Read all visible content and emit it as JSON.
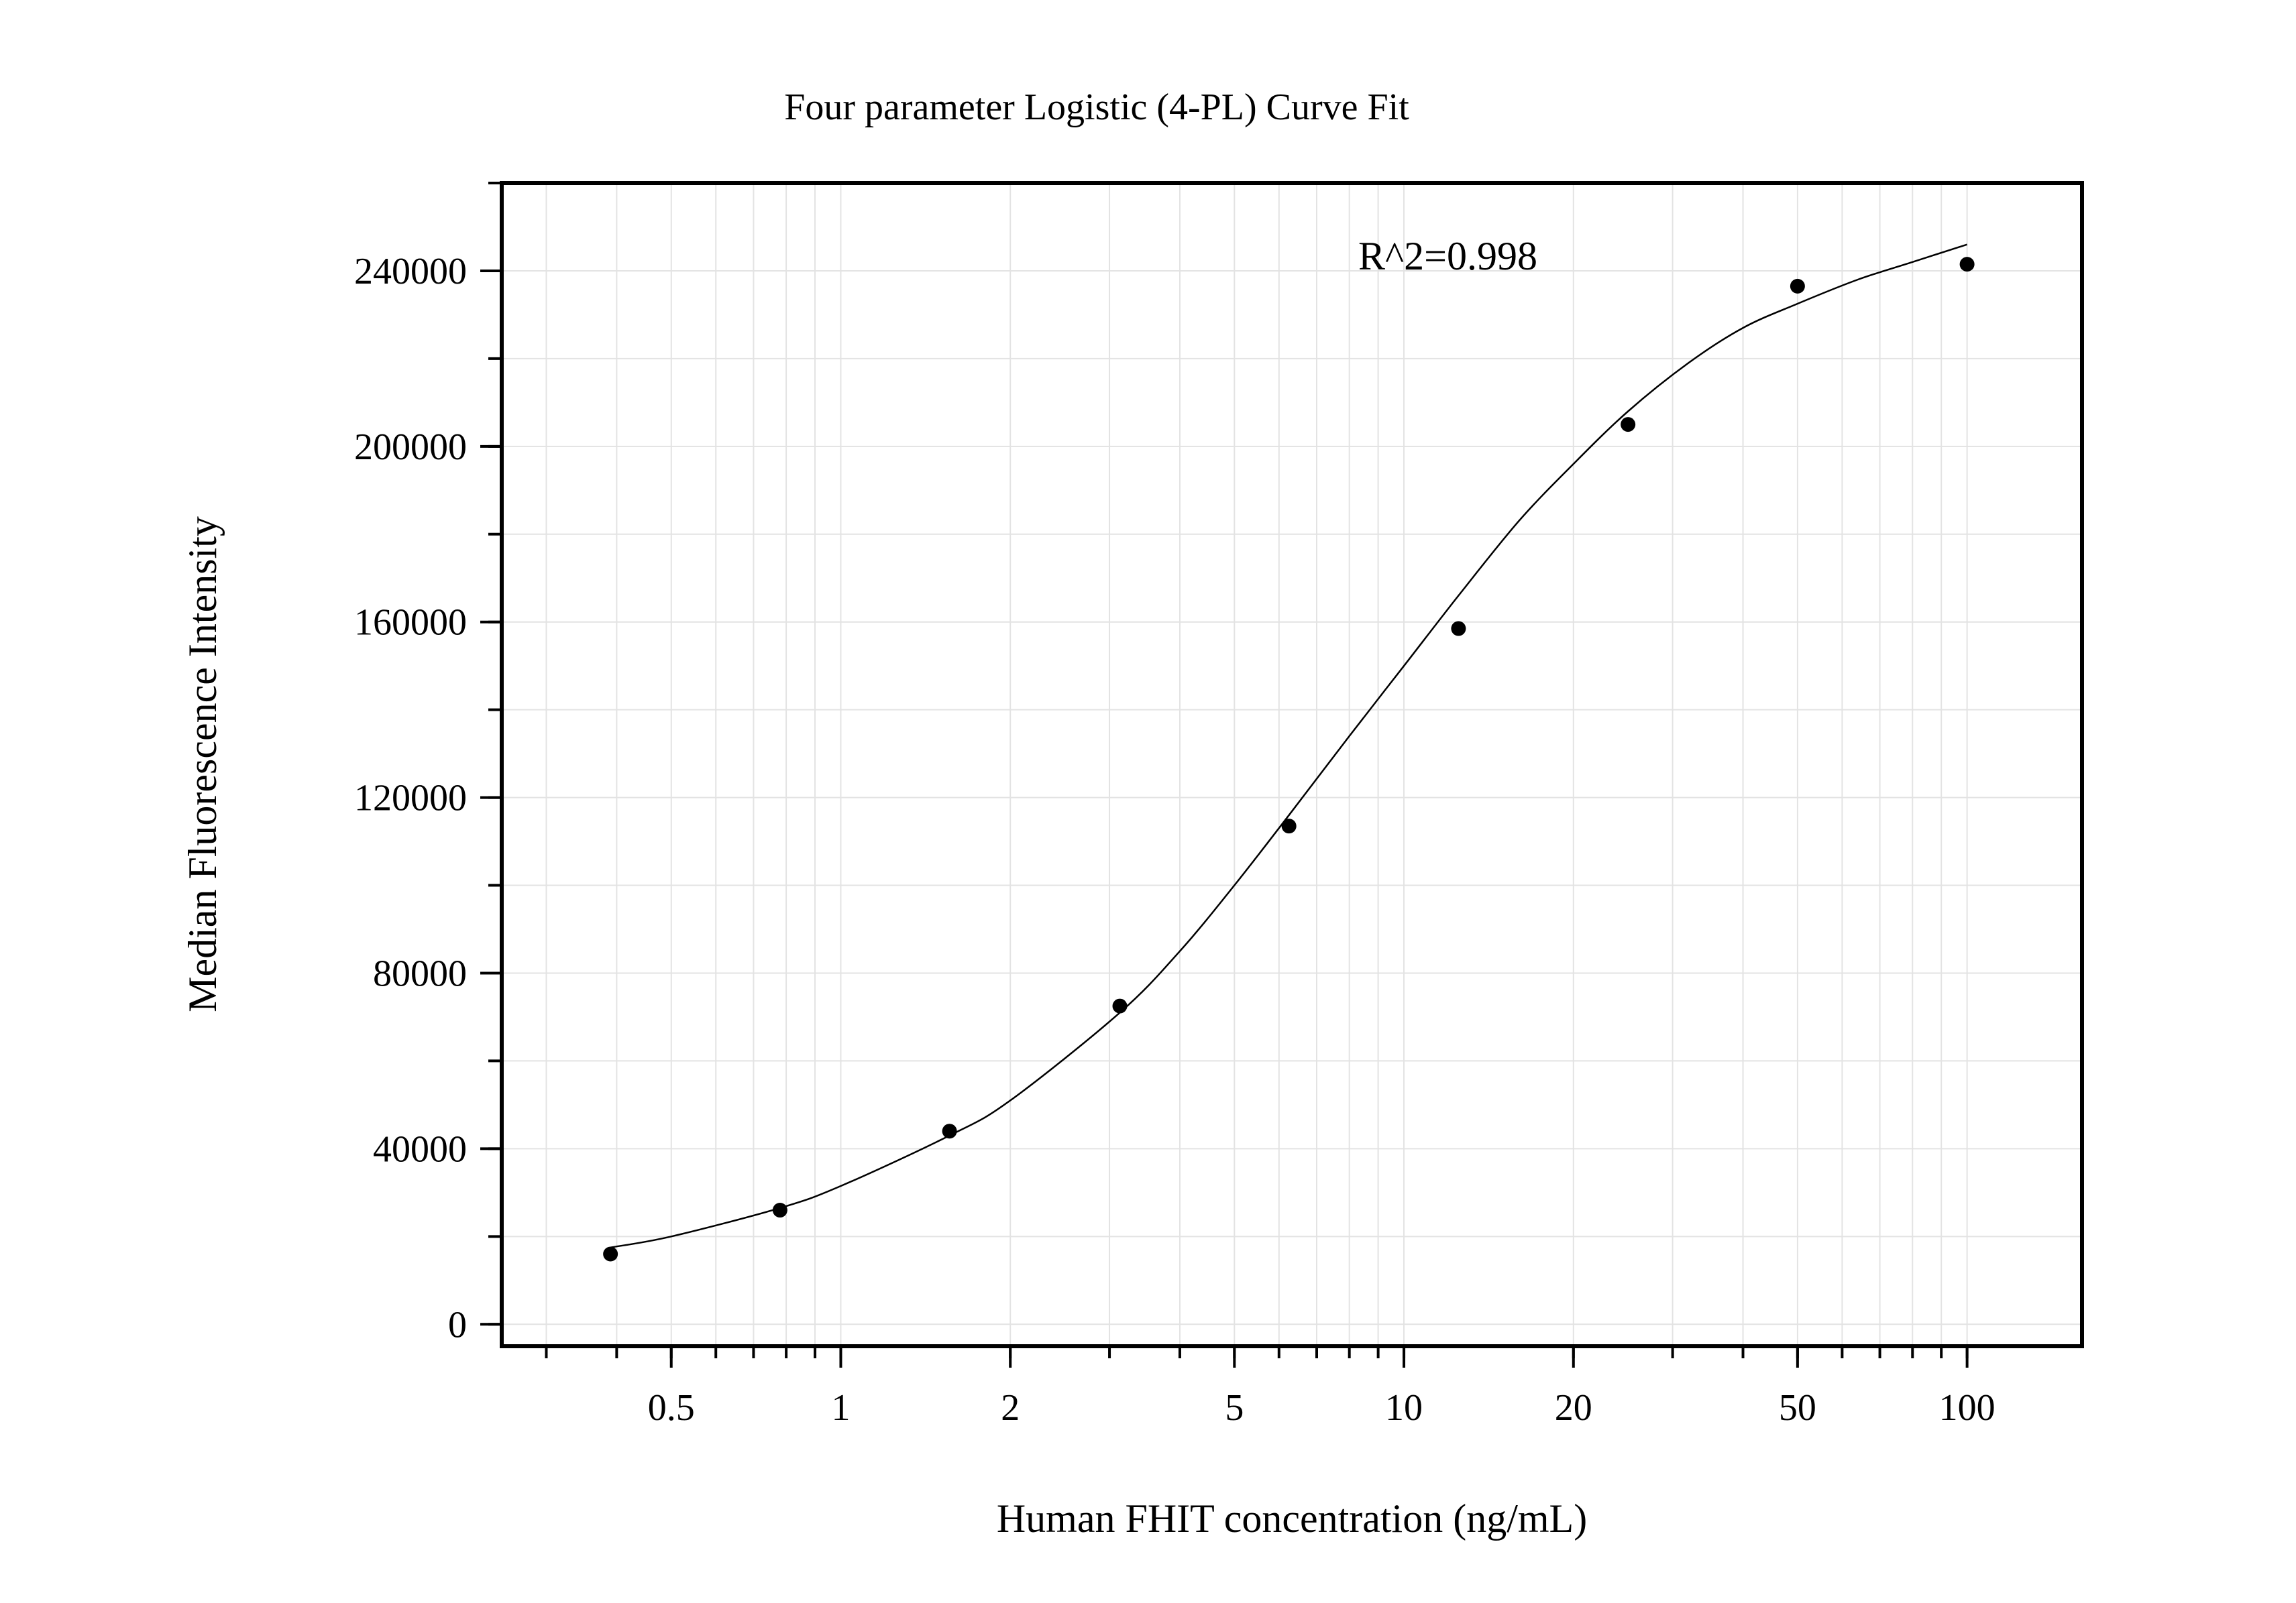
{
  "chart_data": {
    "type": "scatter",
    "title": "Four parameter Logistic (4-PL) Curve Fit",
    "xlabel": "Human FHIT concentration (ng/mL)",
    "ylabel": "Median Fluorescence Intensity",
    "x_scale": "log",
    "xlim": [
      0.25,
      160
    ],
    "ylim": [
      -5000,
      260000
    ],
    "grid": true,
    "x_ticks": [
      0.5,
      1,
      2,
      5,
      10,
      20,
      50,
      100
    ],
    "x_tick_labels": [
      "0.5",
      "1",
      "2",
      "5",
      "10",
      "20",
      "50",
      "100"
    ],
    "y_ticks": [
      0,
      40000,
      80000,
      120000,
      160000,
      200000,
      240000
    ],
    "y_tick_labels": [
      "0",
      "40000",
      "80000",
      "120000",
      "160000",
      "200000",
      "240000"
    ],
    "points": {
      "x": [
        0.39,
        0.78,
        1.56,
        3.13,
        6.25,
        12.5,
        25,
        50,
        100
      ],
      "y": [
        16000,
        26000,
        44000,
        72500,
        113500,
        158500,
        205000,
        236500,
        241500
      ]
    },
    "fit_curve": {
      "model": "4-PL",
      "x": [
        0.39,
        0.5,
        0.78,
        1.0,
        1.56,
        2.0,
        3.13,
        4.0,
        5.0,
        6.25,
        8.0,
        10.0,
        12.5,
        16.0,
        20.0,
        25.0,
        32.0,
        40.0,
        50.0,
        64.0,
        80.0,
        100.0
      ],
      "y": [
        17500,
        20000,
        26500,
        31500,
        43000,
        51000,
        71000,
        85000,
        100000,
        116000,
        134000,
        150000,
        166000,
        183000,
        196000,
        208000,
        219000,
        227000,
        232500,
        238000,
        242000,
        246000
      ]
    },
    "annotation": "R^2=0.998"
  }
}
